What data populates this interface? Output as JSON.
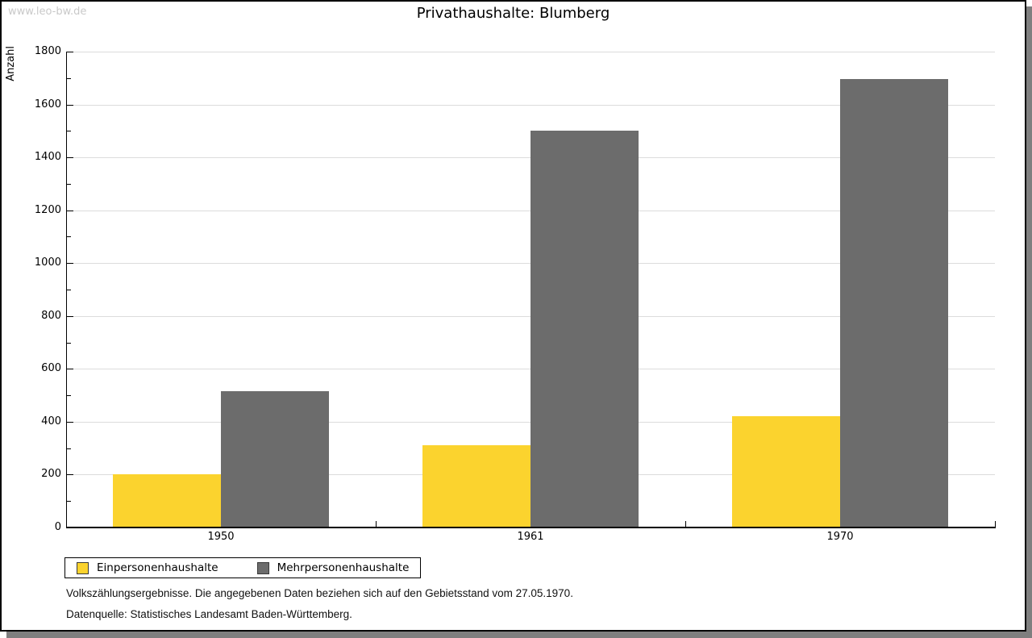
{
  "watermark": "www.leo-bw.de",
  "chart_data": {
    "type": "bar",
    "title": "Privathaushalte: Blumberg",
    "ylabel": "Anzahl",
    "categories": [
      "1950",
      "1961",
      "1970"
    ],
    "series": [
      {
        "name": "Einpersonenhaushalte",
        "color": "#fbd32e",
        "values": [
          200,
          310,
          420
        ]
      },
      {
        "name": "Mehrpersonenhaushalte",
        "color": "#6c6c6c",
        "values": [
          515,
          1500,
          1695
        ]
      }
    ],
    "ylim": [
      0,
      1800
    ],
    "ytick_step": 200,
    "yminor_step": 100,
    "grid": true,
    "gridline_color": "#dcdcdc",
    "legend_position": "bottom"
  },
  "footnotes": {
    "line1": "Volkszählungsergebnisse. Die angegebenen Daten beziehen sich auf den Gebietsstand vom 27.05.1970.",
    "line2": "Datenquelle: Statistisches Landesamt Baden-Württemberg."
  }
}
